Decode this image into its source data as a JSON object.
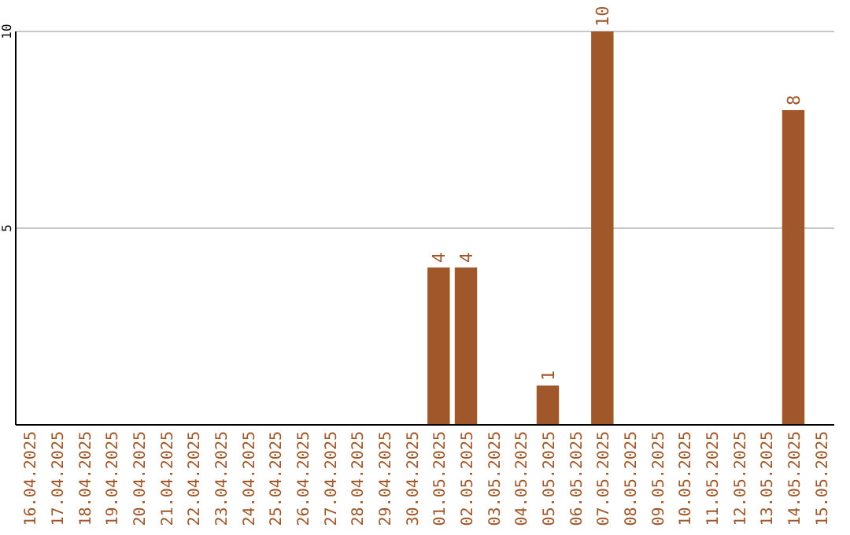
{
  "chart_data": {
    "type": "bar",
    "categories": [
      "16.04.2025",
      "17.04.2025",
      "18.04.2025",
      "19.04.2025",
      "20.04.2025",
      "21.04.2025",
      "22.04.2025",
      "23.04.2025",
      "24.04.2025",
      "25.04.2025",
      "26.04.2025",
      "27.04.2025",
      "28.04.2025",
      "29.04.2025",
      "30.04.2025",
      "01.05.2025",
      "02.05.2025",
      "03.05.2025",
      "04.05.2025",
      "05.05.2025",
      "06.05.2025",
      "07.05.2025",
      "08.05.2025",
      "09.05.2025",
      "10.05.2025",
      "11.05.2025",
      "12.05.2025",
      "13.05.2025",
      "14.05.2025",
      "15.05.2025"
    ],
    "values": [
      0,
      0,
      0,
      0,
      0,
      0,
      0,
      0,
      0,
      0,
      0,
      0,
      0,
      0,
      0,
      4,
      4,
      0,
      0,
      1,
      0,
      10,
      0,
      0,
      0,
      0,
      0,
      0,
      8,
      0
    ],
    "value_labels": [
      null,
      null,
      null,
      null,
      null,
      null,
      null,
      null,
      null,
      null,
      null,
      null,
      null,
      null,
      null,
      "4",
      "4",
      null,
      null,
      "1",
      null,
      "10",
      null,
      null,
      null,
      null,
      null,
      null,
      "8",
      null
    ],
    "color": "#a0582a",
    "ylim": [
      0,
      10
    ],
    "yticks": [
      5,
      10
    ],
    "grid": "y"
  }
}
